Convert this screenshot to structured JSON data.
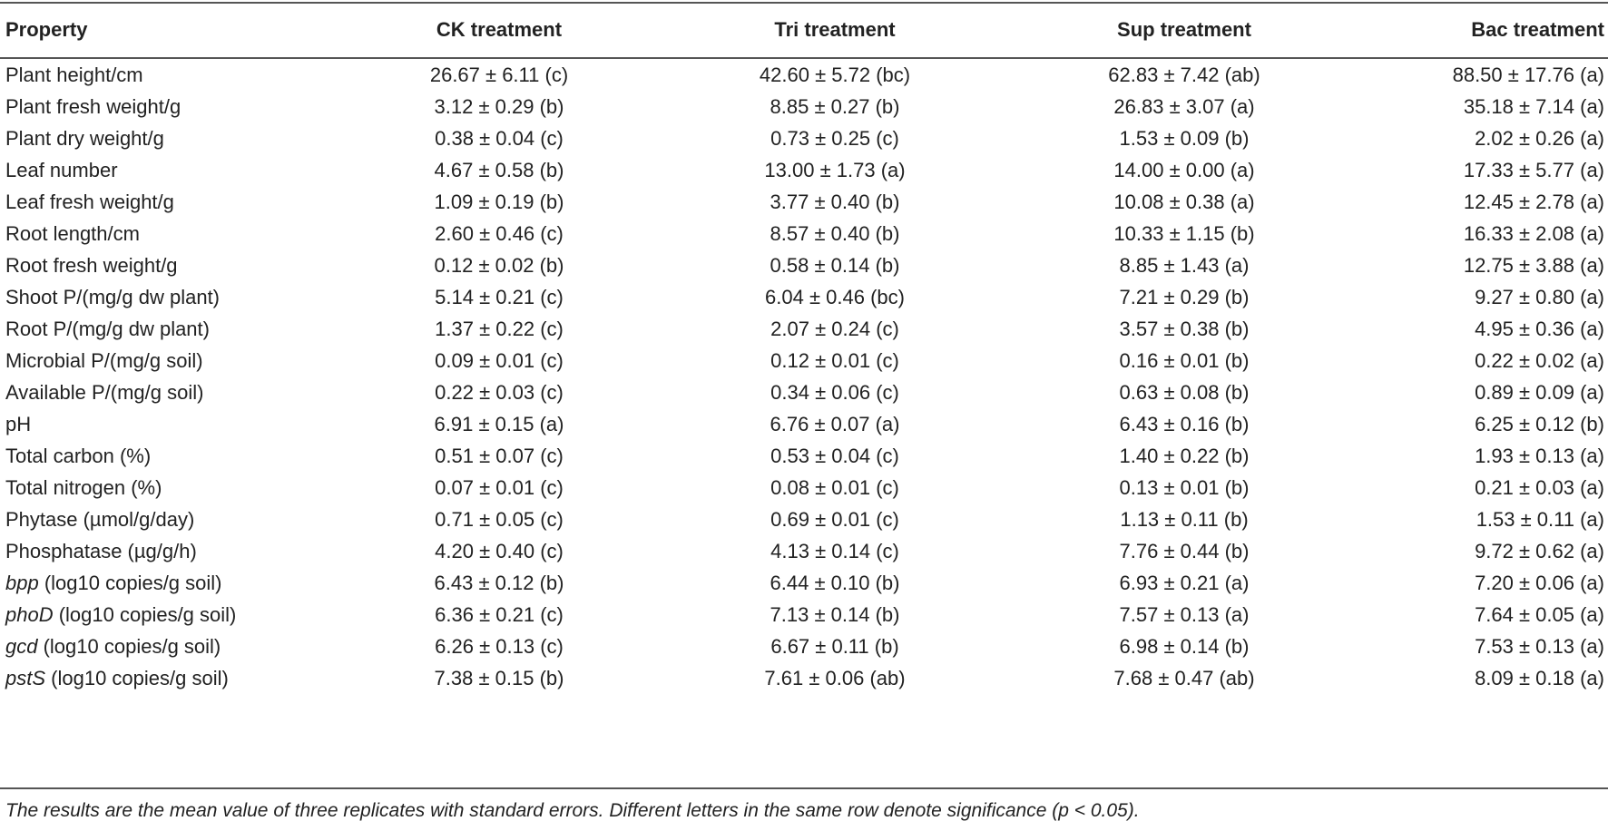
{
  "table": {
    "headers": [
      "Property",
      "CK treatment",
      "Tri treatment",
      "Sup treatment",
      "Bac treatment"
    ],
    "rows": [
      {
        "gene": "",
        "property": "Plant height/cm",
        "values": [
          "26.67 ± 6.11 (c)",
          "42.60 ± 5.72 (bc)",
          "62.83 ± 7.42 (ab)",
          "88.50 ± 17.76 (a)"
        ]
      },
      {
        "gene": "",
        "property": "Plant fresh weight/g",
        "values": [
          "3.12 ± 0.29 (b)",
          "8.85 ± 0.27 (b)",
          "26.83 ± 3.07 (a)",
          "35.18 ± 7.14 (a)"
        ]
      },
      {
        "gene": "",
        "property": "Plant dry weight/g",
        "values": [
          "0.38 ± 0.04 (c)",
          "0.73 ± 0.25 (c)",
          "1.53 ± 0.09 (b)",
          "2.02 ± 0.26 (a)"
        ]
      },
      {
        "gene": "",
        "property": "Leaf number",
        "values": [
          "4.67 ± 0.58 (b)",
          "13.00 ± 1.73 (a)",
          "14.00 ± 0.00 (a)",
          "17.33 ± 5.77 (a)"
        ]
      },
      {
        "gene": "",
        "property": "Leaf fresh weight/g",
        "values": [
          "1.09 ± 0.19 (b)",
          "3.77 ± 0.40 (b)",
          "10.08 ± 0.38 (a)",
          "12.45 ± 2.78 (a)"
        ]
      },
      {
        "gene": "",
        "property": "Root length/cm",
        "values": [
          "2.60 ± 0.46 (c)",
          "8.57 ± 0.40 (b)",
          "10.33 ± 1.15 (b)",
          "16.33 ± 2.08 (a)"
        ]
      },
      {
        "gene": "",
        "property": "Root fresh weight/g",
        "values": [
          "0.12 ± 0.02 (b)",
          "0.58 ± 0.14 (b)",
          "8.85 ± 1.43 (a)",
          "12.75 ± 3.88 (a)"
        ]
      },
      {
        "gene": "",
        "property": "Shoot P/(mg/g dw plant)",
        "values": [
          "5.14 ± 0.21 (c)",
          "6.04 ± 0.46 (bc)",
          "7.21 ± 0.29 (b)",
          "9.27 ± 0.80 (a)"
        ]
      },
      {
        "gene": "",
        "property": "Root P/(mg/g dw plant)",
        "values": [
          "1.37 ± 0.22 (c)",
          "2.07 ± 0.24 (c)",
          "3.57 ± 0.38 (b)",
          "4.95 ± 0.36 (a)"
        ]
      },
      {
        "gene": "",
        "property": "Microbial P/(mg/g soil)",
        "values": [
          "0.09 ± 0.01 (c)",
          "0.12 ± 0.01 (c)",
          "0.16 ± 0.01 (b)",
          "0.22 ± 0.02 (a)"
        ]
      },
      {
        "gene": "",
        "property": "Available P/(mg/g soil)",
        "values": [
          "0.22 ± 0.03 (c)",
          "0.34 ± 0.06 (c)",
          "0.63 ± 0.08 (b)",
          "0.89 ± 0.09 (a)"
        ]
      },
      {
        "gene": "",
        "property": "pH",
        "values": [
          "6.91 ± 0.15 (a)",
          "6.76 ± 0.07 (a)",
          "6.43 ± 0.16 (b)",
          "6.25 ± 0.12 (b)"
        ]
      },
      {
        "gene": "",
        "property": "Total carbon (%)",
        "values": [
          "0.51 ± 0.07 (c)",
          "0.53 ± 0.04 (c)",
          "1.40 ± 0.22 (b)",
          "1.93 ± 0.13 (a)"
        ]
      },
      {
        "gene": "",
        "property": "Total nitrogen (%)",
        "values": [
          "0.07 ± 0.01 (c)",
          "0.08 ± 0.01 (c)",
          "0.13 ± 0.01 (b)",
          "0.21 ± 0.03 (a)"
        ]
      },
      {
        "gene": "",
        "property": "Phytase (µmol/g/day)",
        "values": [
          "0.71 ± 0.05 (c)",
          "0.69 ± 0.01 (c)",
          "1.13 ± 0.11 (b)",
          "1.53 ± 0.11 (a)"
        ]
      },
      {
        "gene": "",
        "property": "Phosphatase (µg/g/h)",
        "values": [
          "4.20 ± 0.40 (c)",
          "4.13 ± 0.14 (c)",
          "7.76 ± 0.44 (b)",
          "9.72 ± 0.62 (a)"
        ]
      },
      {
        "gene": "bpp",
        "property": " (log10 copies/g soil)",
        "values": [
          "6.43 ± 0.12 (b)",
          "6.44 ± 0.10 (b)",
          "6.93 ± 0.21 (a)",
          "7.20 ± 0.06 (a)"
        ]
      },
      {
        "gene": "phoD",
        "property": " (log10 copies/g soil)",
        "values": [
          "6.36 ± 0.21 (c)",
          "7.13 ± 0.14 (b)",
          "7.57 ± 0.13 (a)",
          "7.64 ± 0.05 (a)"
        ]
      },
      {
        "gene": "gcd",
        "property": " (log10 copies/g soil)",
        "values": [
          "6.26 ± 0.13 (c)",
          "6.67 ± 0.11 (b)",
          "6.98 ± 0.14 (b)",
          "7.53 ± 0.13 (a)"
        ]
      },
      {
        "gene": "pstS",
        "property": " (log10 copies/g soil)",
        "values": [
          "7.38 ± 0.15 (b)",
          "7.61 ± 0.06 (ab)",
          "7.68 ± 0.47 (ab)",
          "8.09 ± 0.18 (a)"
        ]
      }
    ],
    "footnote": "The results are the mean value of three replicates with standard errors. Different letters in the same row denote significance (p < 0.05)."
  }
}
